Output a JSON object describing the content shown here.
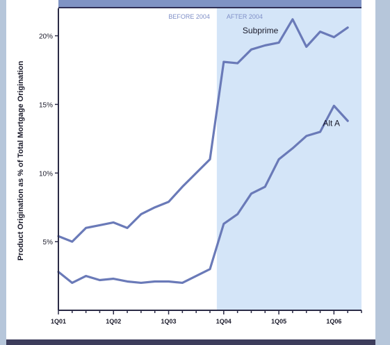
{
  "chart_data": {
    "type": "line",
    "title": "",
    "xlabel": "",
    "ylabel": "Product Origination as % of Total Mortgage Origination",
    "ylim": [
      0,
      22
    ],
    "yticks": [
      5,
      10,
      15,
      20
    ],
    "ytick_labels": [
      "5%",
      "10%",
      "15%",
      "20%"
    ],
    "xlim": [
      0,
      22
    ],
    "xticks": [
      0,
      4,
      8,
      12,
      16,
      20
    ],
    "xtick_labels": [
      "1Q01",
      "1Q02",
      "1Q03",
      "1Q04",
      "1Q05",
      "1Q06"
    ],
    "regions": [
      {
        "label": "BEFORE 2004",
        "x_start": 0,
        "x_end": 11.5,
        "color": "#ffffff"
      },
      {
        "label": "AFTER 2004",
        "x_start": 11.5,
        "x_end": 22,
        "color": "#d4e5f8"
      }
    ],
    "series": [
      {
        "name": "Subprime",
        "x": [
          0,
          1,
          2,
          3,
          4,
          5,
          6,
          7,
          8,
          9,
          10,
          11,
          12,
          13,
          14,
          15,
          16,
          17,
          18,
          19,
          20,
          21
        ],
        "values": [
          5.4,
          5.0,
          6.0,
          6.2,
          6.4,
          6.0,
          7.0,
          7.5,
          7.9,
          9.0,
          10.0,
          11.0,
          18.1,
          18.0,
          19.0,
          19.3,
          19.5,
          21.2,
          19.2,
          20.3,
          19.9,
          20.6
        ],
        "color": "#6a7ab8"
      },
      {
        "name": "Alt A",
        "x": [
          0,
          1,
          2,
          3,
          4,
          5,
          6,
          7,
          8,
          9,
          10,
          11,
          12,
          13,
          14,
          15,
          16,
          17,
          18,
          19,
          20,
          21
        ],
        "values": [
          2.8,
          2.0,
          2.5,
          2.2,
          2.3,
          2.1,
          2.0,
          2.1,
          2.1,
          2.0,
          2.5,
          3.0,
          6.3,
          7.0,
          8.5,
          9.0,
          11.0,
          11.8,
          12.7,
          13.0,
          14.9,
          13.8
        ],
        "color": "#6a7ab8"
      }
    ],
    "grid": false,
    "legend": "inline labels"
  }
}
